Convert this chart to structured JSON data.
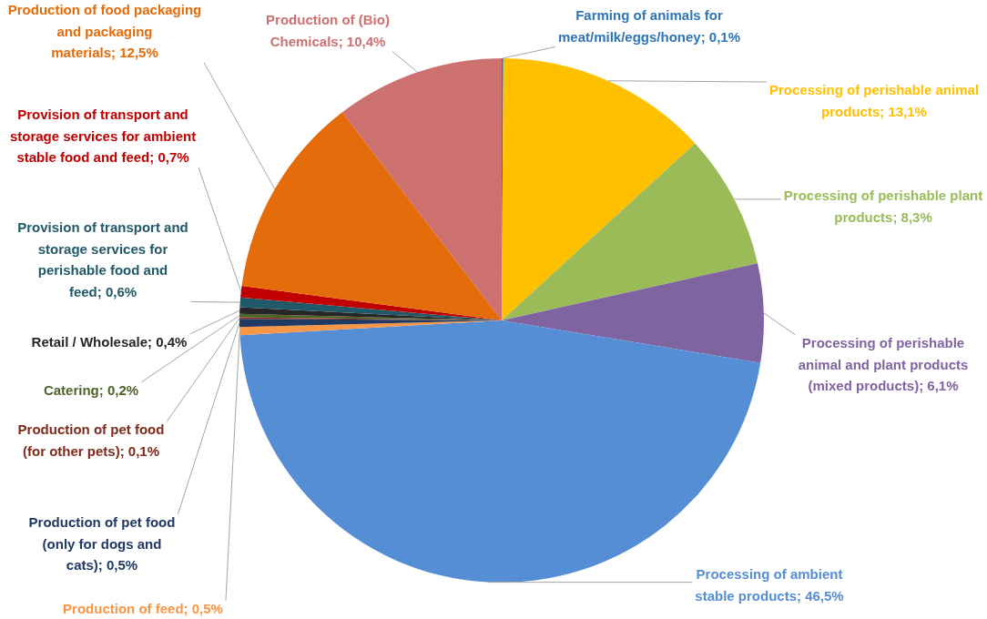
{
  "chart_data": {
    "type": "pie",
    "categories": [
      "Farming of animals for meat/milk/eggs/honey",
      "Processing of perishable animal products",
      "Processing of perishable plant products",
      "Processing of perishable animal and plant products (mixed products)",
      "Processing of ambient stable products",
      "Production of feed",
      "Production of pet food (only for dogs and cats)",
      "Production of pet food (for other pets)",
      "Catering",
      "Retail / Wholesale",
      "Provision of transport and storage services for perishable food and feed",
      "Provision of transport and storage services for ambient stable food and feed",
      "Production of food packaging and packaging materials",
      "Production of (Bio) Chemicals"
    ],
    "values": [
      0.1,
      13.1,
      8.3,
      6.1,
      46.5,
      0.5,
      0.5,
      0.1,
      0.2,
      0.4,
      0.6,
      0.7,
      12.5,
      10.4
    ],
    "value_labels": [
      "0,1%",
      "13,1%",
      "8,3%",
      "6,1%",
      "46,5%",
      "0,5%",
      "0,5%",
      "0,1%",
      "0,2%",
      "0,4%",
      "0,6%",
      "0,7%",
      "12,5%",
      "10,4%"
    ],
    "colors": [
      "#2e75b6",
      "#ffc000",
      "#9bbb59",
      "#8064a2",
      "#558ed5",
      "#f79646",
      "#1f3864",
      "#7f2a1a",
      "#4f6228",
      "#262626",
      "#215968",
      "#c00000",
      "#e46c0a",
      "#cd7070"
    ],
    "legend": false
  }
}
